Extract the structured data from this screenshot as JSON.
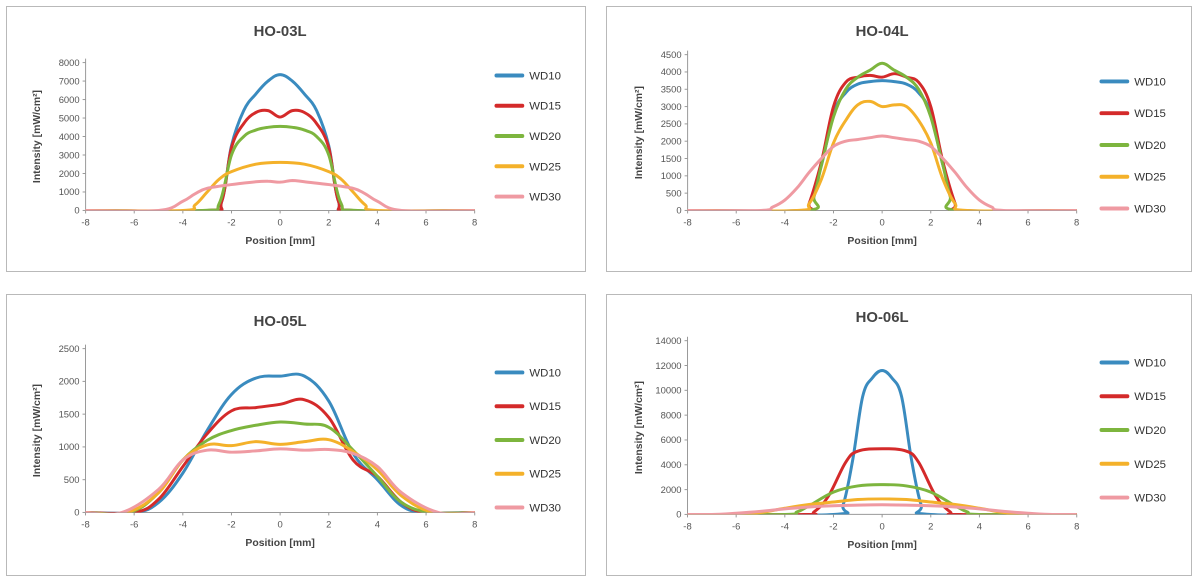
{
  "chart_data": [
    {
      "type": "line",
      "title": "HO-03L",
      "xlabel": "Position [mm]",
      "ylabel": "Intensity [mW/cm²]",
      "xlim": [
        -8,
        8
      ],
      "ylim": [
        0,
        8000
      ],
      "xticks": [
        "-8",
        "-6",
        "-4",
        "-2",
        "0",
        "2",
        "4",
        "6",
        "8"
      ],
      "yticks": [
        "0",
        "1000",
        "2000",
        "3000",
        "4000",
        "5000",
        "6000",
        "7000",
        "8000"
      ],
      "grid": false,
      "legend": "right",
      "series": [
        {
          "name": "WD10",
          "color": "#3a8bbf",
          "x": [
            -8,
            -3,
            -2.4,
            -2,
            -1.5,
            -1,
            -0.5,
            0,
            0.5,
            1,
            1.5,
            2,
            2.4,
            3,
            8
          ],
          "y": [
            0,
            0,
            500,
            3500,
            5400,
            6300,
            7000,
            7350,
            7000,
            6300,
            5400,
            3500,
            500,
            0,
            0
          ]
        },
        {
          "name": "WD15",
          "color": "#d42a2a",
          "x": [
            -8,
            -3,
            -2.4,
            -2,
            -1.5,
            -1,
            -0.5,
            0,
            0.5,
            1,
            1.5,
            2,
            2.4,
            3,
            8
          ],
          "y": [
            0,
            0,
            500,
            3400,
            4700,
            5300,
            5400,
            5050,
            5400,
            5300,
            4700,
            3400,
            500,
            0,
            0
          ]
        },
        {
          "name": "WD20",
          "color": "#7db53e",
          "x": [
            -8,
            -3.2,
            -2.5,
            -2,
            -1.5,
            -1,
            -0.5,
            0,
            0.5,
            1,
            1.5,
            2,
            2.5,
            3.2,
            8
          ],
          "y": [
            0,
            0,
            400,
            3000,
            4000,
            4350,
            4500,
            4550,
            4500,
            4350,
            4000,
            3000,
            400,
            0,
            0
          ]
        },
        {
          "name": "WD25",
          "color": "#f4b12a",
          "x": [
            -8,
            -4,
            -3.5,
            -3,
            -2.5,
            -2,
            -1,
            0,
            1,
            2,
            2.5,
            3,
            3.5,
            4,
            8
          ],
          "y": [
            0,
            0,
            300,
            1000,
            1700,
            2100,
            2500,
            2600,
            2500,
            2100,
            1700,
            1000,
            300,
            0,
            0
          ]
        },
        {
          "name": "WD30",
          "color": "#ef9aa2",
          "x": [
            -8,
            -5,
            -4,
            -3.5,
            -3,
            -2,
            -1,
            -0.5,
            0,
            0.5,
            1,
            2,
            3,
            3.5,
            4,
            5,
            8
          ],
          "y": [
            0,
            0,
            500,
            900,
            1200,
            1400,
            1550,
            1580,
            1530,
            1620,
            1550,
            1400,
            1200,
            900,
            500,
            0,
            0
          ]
        }
      ]
    },
    {
      "type": "line",
      "title": "HO-04L",
      "xlabel": "Position [mm]",
      "ylabel": "Intensity [mW/cm²]",
      "xlim": [
        -8,
        8
      ],
      "ylim": [
        0,
        4500
      ],
      "xticks": [
        "-8",
        "-6",
        "-4",
        "-2",
        "0",
        "2",
        "4",
        "6",
        "8"
      ],
      "yticks": [
        "0",
        "500",
        "1000",
        "1500",
        "2000",
        "2500",
        "3000",
        "3500",
        "4000",
        "4500"
      ],
      "grid": false,
      "legend": "right",
      "series": [
        {
          "name": "WD10",
          "color": "#3a8bbf",
          "x": [
            -8,
            -3.3,
            -3,
            -2.5,
            -2,
            -1.5,
            -1,
            -0.5,
            0,
            0.5,
            1,
            1.5,
            2,
            2.5,
            3,
            3.3,
            8
          ],
          "y": [
            0,
            0,
            200,
            1300,
            2800,
            3400,
            3650,
            3720,
            3750,
            3720,
            3650,
            3400,
            2800,
            1300,
            200,
            0,
            0
          ]
        },
        {
          "name": "WD15",
          "color": "#d42a2a",
          "x": [
            -8,
            -3.2,
            -3,
            -2.5,
            -2,
            -1.5,
            -1,
            -0.5,
            0,
            0.5,
            1,
            1.5,
            2,
            2.5,
            3,
            3.2,
            8
          ],
          "y": [
            0,
            0,
            200,
            1400,
            3000,
            3700,
            3850,
            3900,
            3850,
            3950,
            3850,
            3700,
            3000,
            1400,
            200,
            0,
            0
          ]
        },
        {
          "name": "WD20",
          "color": "#7db53e",
          "x": [
            -8,
            -3.1,
            -2.8,
            -2.5,
            -2,
            -1.5,
            -1,
            -0.5,
            0,
            0.5,
            1,
            1.5,
            2,
            2.5,
            2.8,
            3.1,
            8
          ],
          "y": [
            0,
            0,
            400,
            1300,
            2700,
            3500,
            3850,
            4050,
            4250,
            4050,
            3850,
            3500,
            2700,
            1300,
            400,
            0,
            0
          ]
        },
        {
          "name": "WD25",
          "color": "#f4b12a",
          "x": [
            -8,
            -3.5,
            -3,
            -2.5,
            -2,
            -1.5,
            -1,
            -0.5,
            0,
            0.5,
            1,
            1.5,
            2,
            2.5,
            3,
            3.5,
            8
          ],
          "y": [
            0,
            0,
            200,
            900,
            1950,
            2600,
            3050,
            3150,
            3000,
            3050,
            3000,
            2600,
            1950,
            900,
            200,
            0,
            0
          ]
        },
        {
          "name": "WD30",
          "color": "#ef9aa2",
          "x": [
            -8,
            -5,
            -4.5,
            -4,
            -3.5,
            -3,
            -2.5,
            -2,
            -1.5,
            -1,
            -0.5,
            0,
            0.5,
            1,
            1.5,
            2,
            2.5,
            3,
            3.5,
            4,
            4.5,
            5,
            8
          ],
          "y": [
            0,
            0,
            100,
            300,
            650,
            1100,
            1500,
            1850,
            2000,
            2050,
            2100,
            2150,
            2100,
            2050,
            2000,
            1850,
            1500,
            1100,
            650,
            300,
            100,
            0,
            0
          ]
        }
      ]
    },
    {
      "type": "line",
      "title": "HO-05L",
      "xlabel": "Position [mm]",
      "ylabel": "Intensity [mW/cm²]",
      "xlim": [
        -8,
        8
      ],
      "ylim": [
        0,
        2500
      ],
      "xticks": [
        "-8",
        "-6",
        "-4",
        "-2",
        "0",
        "2",
        "4",
        "6",
        "8"
      ],
      "yticks": [
        "0",
        "500",
        "1000",
        "1500",
        "2000",
        "2500"
      ],
      "grid": false,
      "legend": "right",
      "series": [
        {
          "name": "WD10",
          "color": "#3a8bbf",
          "x": [
            -8,
            -6,
            -5,
            -4,
            -3,
            -2,
            -1,
            0,
            1,
            2,
            3,
            4,
            5,
            6,
            8
          ],
          "y": [
            0,
            0,
            150,
            600,
            1250,
            1800,
            2050,
            2080,
            2080,
            1700,
            900,
            500,
            100,
            0,
            0
          ]
        },
        {
          "name": "WD15",
          "color": "#d42a2a",
          "x": [
            -8,
            -6,
            -5,
            -4,
            -3,
            -2,
            -1,
            0,
            1,
            2,
            3,
            4,
            5,
            6,
            8
          ],
          "y": [
            0,
            0,
            200,
            700,
            1200,
            1550,
            1600,
            1650,
            1720,
            1450,
            800,
            550,
            150,
            0,
            0
          ]
        },
        {
          "name": "WD20",
          "color": "#7db53e",
          "x": [
            -8,
            -6.2,
            -5,
            -4,
            -3,
            -2,
            -1,
            0,
            1,
            2,
            3,
            4,
            5,
            6.2,
            8
          ],
          "y": [
            0,
            0,
            300,
            800,
            1100,
            1250,
            1330,
            1380,
            1350,
            1300,
            950,
            550,
            150,
            0,
            0
          ]
        },
        {
          "name": "WD25",
          "color": "#f4b12a",
          "x": [
            -8,
            -6.3,
            -5,
            -4,
            -3,
            -2,
            -1,
            0,
            1,
            2,
            3,
            4,
            5,
            6.3,
            8
          ],
          "y": [
            0,
            0,
            300,
            800,
            1030,
            1020,
            1080,
            1040,
            1080,
            1110,
            930,
            650,
            250,
            0,
            0
          ]
        },
        {
          "name": "WD30",
          "color": "#ef9aa2",
          "x": [
            -8,
            -6.5,
            -5,
            -4,
            -3,
            -2,
            -1,
            0,
            1,
            2,
            3,
            4,
            5,
            6.5,
            8
          ],
          "y": [
            0,
            0,
            350,
            800,
            950,
            920,
            940,
            970,
            950,
            960,
            900,
            700,
            300,
            0,
            0
          ]
        }
      ]
    },
    {
      "type": "line",
      "title": "HO-06L",
      "xlabel": "Position [mm]",
      "ylabel": "Intensity [mW/cm²]",
      "xlim": [
        -8,
        8
      ],
      "ylim": [
        0,
        14000
      ],
      "xticks": [
        "-8",
        "-6",
        "-4",
        "-2",
        "0",
        "2",
        "4",
        "6",
        "8"
      ],
      "yticks": [
        "0",
        "2000",
        "4000",
        "6000",
        "8000",
        "10000",
        "12000",
        "14000"
      ],
      "grid": false,
      "legend": "right",
      "series": [
        {
          "name": "WD10",
          "color": "#3a8bbf",
          "x": [
            -8,
            -2,
            -1.6,
            -1.2,
            -0.8,
            -0.4,
            0,
            0.4,
            0.8,
            1.2,
            1.6,
            2,
            8
          ],
          "y": [
            0,
            0,
            800,
            4500,
            9500,
            11000,
            11600,
            11000,
            9500,
            4500,
            800,
            0,
            0
          ]
        },
        {
          "name": "WD15",
          "color": "#d42a2a",
          "x": [
            -8,
            -3.2,
            -2.8,
            -2.2,
            -1.5,
            -1,
            0,
            1,
            1.5,
            2.2,
            2.8,
            3.2,
            8
          ],
          "y": [
            0,
            0,
            200,
            1500,
            4200,
            5100,
            5300,
            5100,
            4200,
            1500,
            200,
            0,
            0
          ]
        },
        {
          "name": "WD20",
          "color": "#7db53e",
          "x": [
            -8,
            -4,
            -3.5,
            -3,
            -2,
            -1,
            0,
            1,
            2,
            3,
            3.5,
            4,
            8
          ],
          "y": [
            0,
            0,
            200,
            700,
            1800,
            2300,
            2400,
            2300,
            1800,
            700,
            200,
            0,
            0
          ]
        },
        {
          "name": "WD25",
          "color": "#f4b12a",
          "x": [
            -8,
            -6,
            -5,
            -4,
            -3,
            -2,
            -1,
            0,
            1,
            2,
            3,
            4,
            5,
            6,
            8
          ],
          "y": [
            0,
            0,
            150,
            500,
            800,
            1000,
            1200,
            1250,
            1200,
            1000,
            800,
            500,
            150,
            0,
            0
          ]
        },
        {
          "name": "WD30",
          "color": "#ef9aa2",
          "x": [
            -8,
            -7,
            -6,
            -5,
            -4,
            -3,
            -2,
            -1,
            0,
            1,
            2,
            3,
            4,
            5,
            6,
            7,
            8
          ],
          "y": [
            0,
            0,
            100,
            250,
            450,
            600,
            700,
            750,
            780,
            750,
            700,
            600,
            450,
            250,
            100,
            0,
            0
          ]
        }
      ]
    }
  ]
}
